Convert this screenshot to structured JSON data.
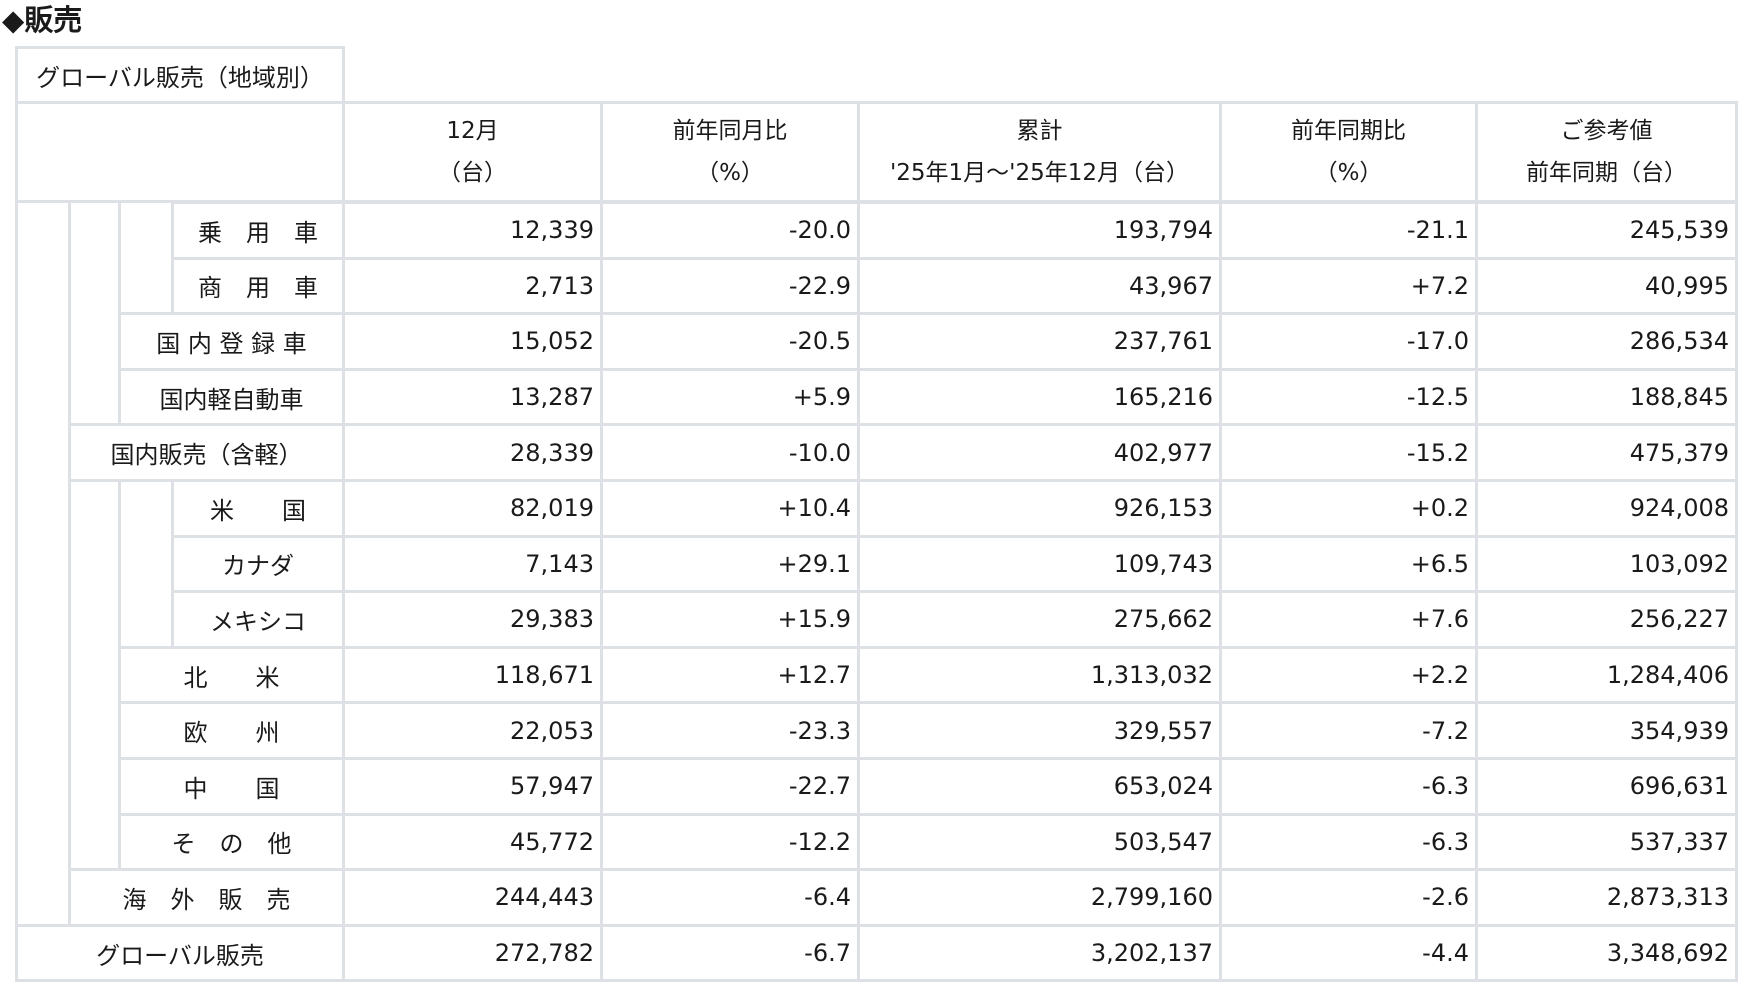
{
  "title": "◆販売",
  "table": {
    "caption": "グローバル販売（地域別）",
    "columns": [
      {
        "line1": "12月",
        "line2": "（台）"
      },
      {
        "line1": "前年同月比",
        "line2": "（%）"
      },
      {
        "line1": "累計",
        "line2": "'25年1月～'25年12月（台）"
      },
      {
        "line1": "前年同期比",
        "line2": "（%）"
      },
      {
        "line1": "ご参考値",
        "line2": "前年同期（台）"
      }
    ],
    "rows": [
      {
        "label": "乗　用　車",
        "level": 3,
        "values": [
          "12,339",
          "-20.0",
          "193,794",
          "-21.1",
          "245,539"
        ]
      },
      {
        "label": "商　用　車",
        "level": 3,
        "values": [
          "2,713",
          "-22.9",
          "43,967",
          "+7.2",
          "40,995"
        ]
      },
      {
        "label": "国 内 登 録 車",
        "level": 2,
        "values": [
          "15,052",
          "-20.5",
          "237,761",
          "-17.0",
          "286,534"
        ]
      },
      {
        "label": "国内軽自動車",
        "level": 2,
        "values": [
          "13,287",
          "+5.9",
          "165,216",
          "-12.5",
          "188,845"
        ]
      },
      {
        "label": "国内販売（含軽）",
        "level": 1,
        "values": [
          "28,339",
          "-10.0",
          "402,977",
          "-15.2",
          "475,379"
        ]
      },
      {
        "label": "米　　国",
        "level": 3,
        "values": [
          "82,019",
          "+10.4",
          "926,153",
          "+0.2",
          "924,008"
        ]
      },
      {
        "label": "カナダ",
        "level": 3,
        "values": [
          "7,143",
          "+29.1",
          "109,743",
          "+6.5",
          "103,092"
        ]
      },
      {
        "label": "メキシコ",
        "level": 3,
        "values": [
          "29,383",
          "+15.9",
          "275,662",
          "+7.6",
          "256,227"
        ]
      },
      {
        "label": "北　　米",
        "level": 2,
        "values": [
          "118,671",
          "+12.7",
          "1,313,032",
          "+2.2",
          "1,284,406"
        ]
      },
      {
        "label": "欧　　州",
        "level": 2,
        "values": [
          "22,053",
          "-23.3",
          "329,557",
          "-7.2",
          "354,939"
        ]
      },
      {
        "label": "中　　国",
        "level": 2,
        "values": [
          "57,947",
          "-22.7",
          "653,024",
          "-6.3",
          "696,631"
        ]
      },
      {
        "label": "そ　の　他",
        "level": 2,
        "values": [
          "45,772",
          "-12.2",
          "503,547",
          "-6.3",
          "537,337"
        ]
      },
      {
        "label": "海　外　販　売",
        "level": 1,
        "values": [
          "244,443",
          "-6.4",
          "2,799,160",
          "-2.6",
          "2,873,313"
        ]
      },
      {
        "label": "グローバル販売",
        "level": 0,
        "values": [
          "272,782",
          "-6.7",
          "3,202,137",
          "-4.4",
          "3,348,692"
        ]
      }
    ]
  }
}
